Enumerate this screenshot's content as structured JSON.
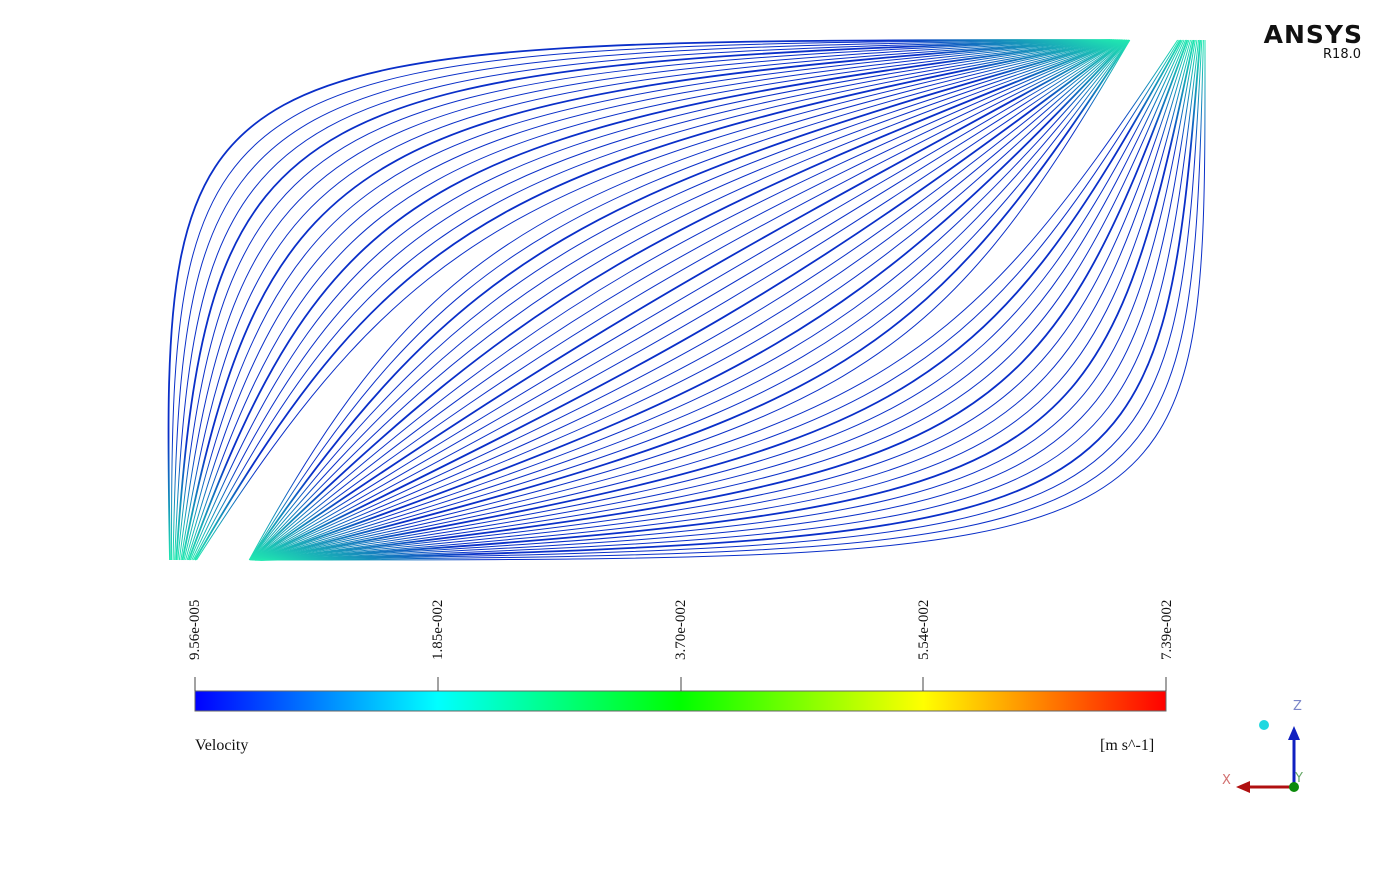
{
  "logo": {
    "brand": "ANSYS",
    "version": "R18.0"
  },
  "legend": {
    "variable": "Velocity",
    "units": "[m s^-1]",
    "ticks": [
      "9.56e-005",
      "1.85e-002",
      "3.70e-002",
      "5.54e-002",
      "7.39e-002"
    ],
    "colors": [
      "#0000ff",
      "#00ffff",
      "#00ff00",
      "#ffff00",
      "#ff0000"
    ]
  },
  "streamlines": {
    "count": 60,
    "color_low": "#0a2fc8",
    "color_high": "#20e8b0"
  },
  "triad": {
    "x_label": "X",
    "y_label": "Y",
    "z_label": "Z",
    "x_color": "#b01010",
    "y_color": "#0a8a0a",
    "z_color": "#1020c0"
  }
}
